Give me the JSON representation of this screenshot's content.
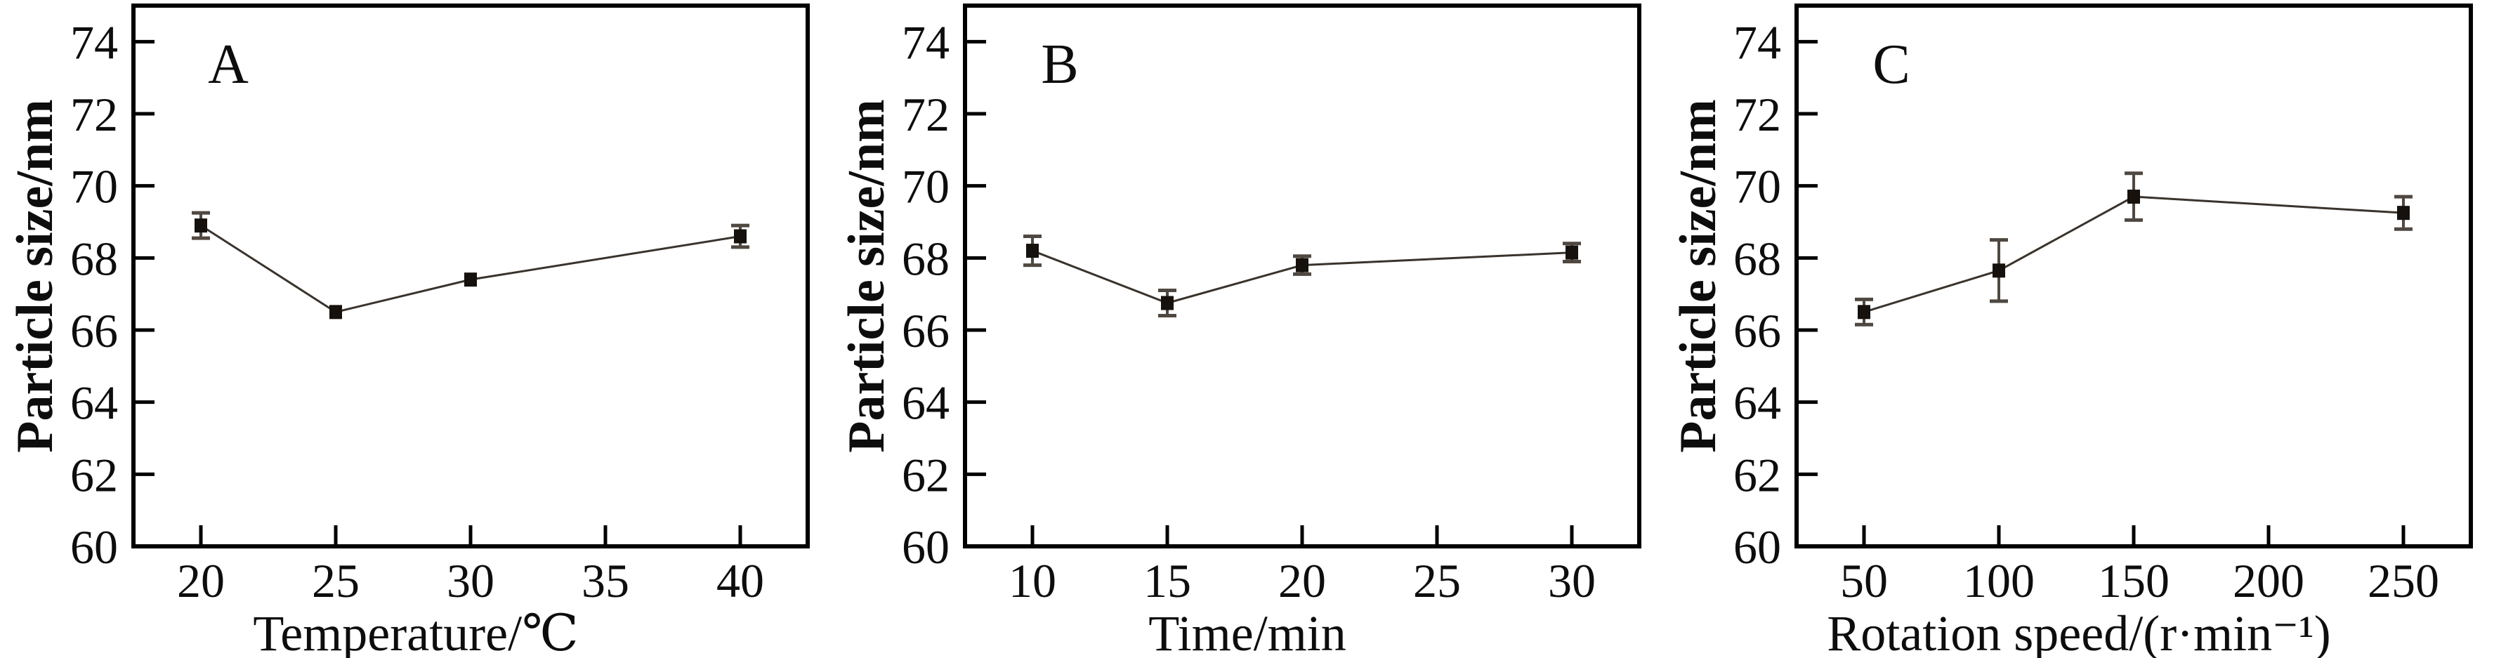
{
  "figure": {
    "background": "#ffffff",
    "axis_color": "#000000",
    "marker_color": "#16110d",
    "line_color": "#3a332c",
    "error_bar_color": "#4f4841",
    "text_color": "#0d0d0d"
  },
  "chart_data": [
    {
      "type": "line",
      "panel_label": "A",
      "title": "",
      "xlabel": "Temperature/℃",
      "ylabel": "Particle size/nm",
      "x": [
        20,
        25,
        30,
        40
      ],
      "y": [
        68.9,
        66.5,
        67.4,
        68.6
      ],
      "y_err": [
        0.35,
        0.1,
        0.1,
        0.3
      ],
      "x_ticks": [
        20,
        25,
        30,
        35,
        40
      ],
      "y_ticks": [
        60,
        62,
        64,
        66,
        68,
        70,
        72,
        74
      ],
      "xlim": [
        17.5,
        42.5
      ],
      "ylim": [
        60,
        75
      ],
      "marker": "square",
      "grid": false,
      "legend": null
    },
    {
      "type": "line",
      "panel_label": "B",
      "title": "",
      "xlabel": "Time/min",
      "ylabel": "Particle size/nm",
      "x": [
        10,
        15,
        20,
        30
      ],
      "y": [
        68.2,
        66.75,
        67.8,
        68.15
      ],
      "y_err": [
        0.4,
        0.35,
        0.25,
        0.25
      ],
      "x_ticks": [
        10,
        15,
        20,
        25,
        30
      ],
      "y_ticks": [
        60,
        62,
        64,
        66,
        68,
        70,
        72,
        74
      ],
      "xlim": [
        7.5,
        32.5
      ],
      "ylim": [
        60,
        75
      ],
      "marker": "square",
      "grid": false,
      "legend": null
    },
    {
      "type": "line",
      "panel_label": "C",
      "title": "",
      "xlabel": "Rotation speed/(r·min⁻¹)",
      "ylabel": "Particle size/nm",
      "x": [
        50,
        100,
        150,
        250
      ],
      "y": [
        66.5,
        67.65,
        69.7,
        69.25
      ],
      "y_err": [
        0.35,
        0.85,
        0.65,
        0.45
      ],
      "x_ticks": [
        50,
        100,
        150,
        200,
        250
      ],
      "y_ticks": [
        60,
        62,
        64,
        66,
        68,
        70,
        72,
        74
      ],
      "xlim": [
        25,
        275
      ],
      "ylim": [
        60,
        75
      ],
      "marker": "square",
      "grid": false,
      "legend": null
    }
  ]
}
